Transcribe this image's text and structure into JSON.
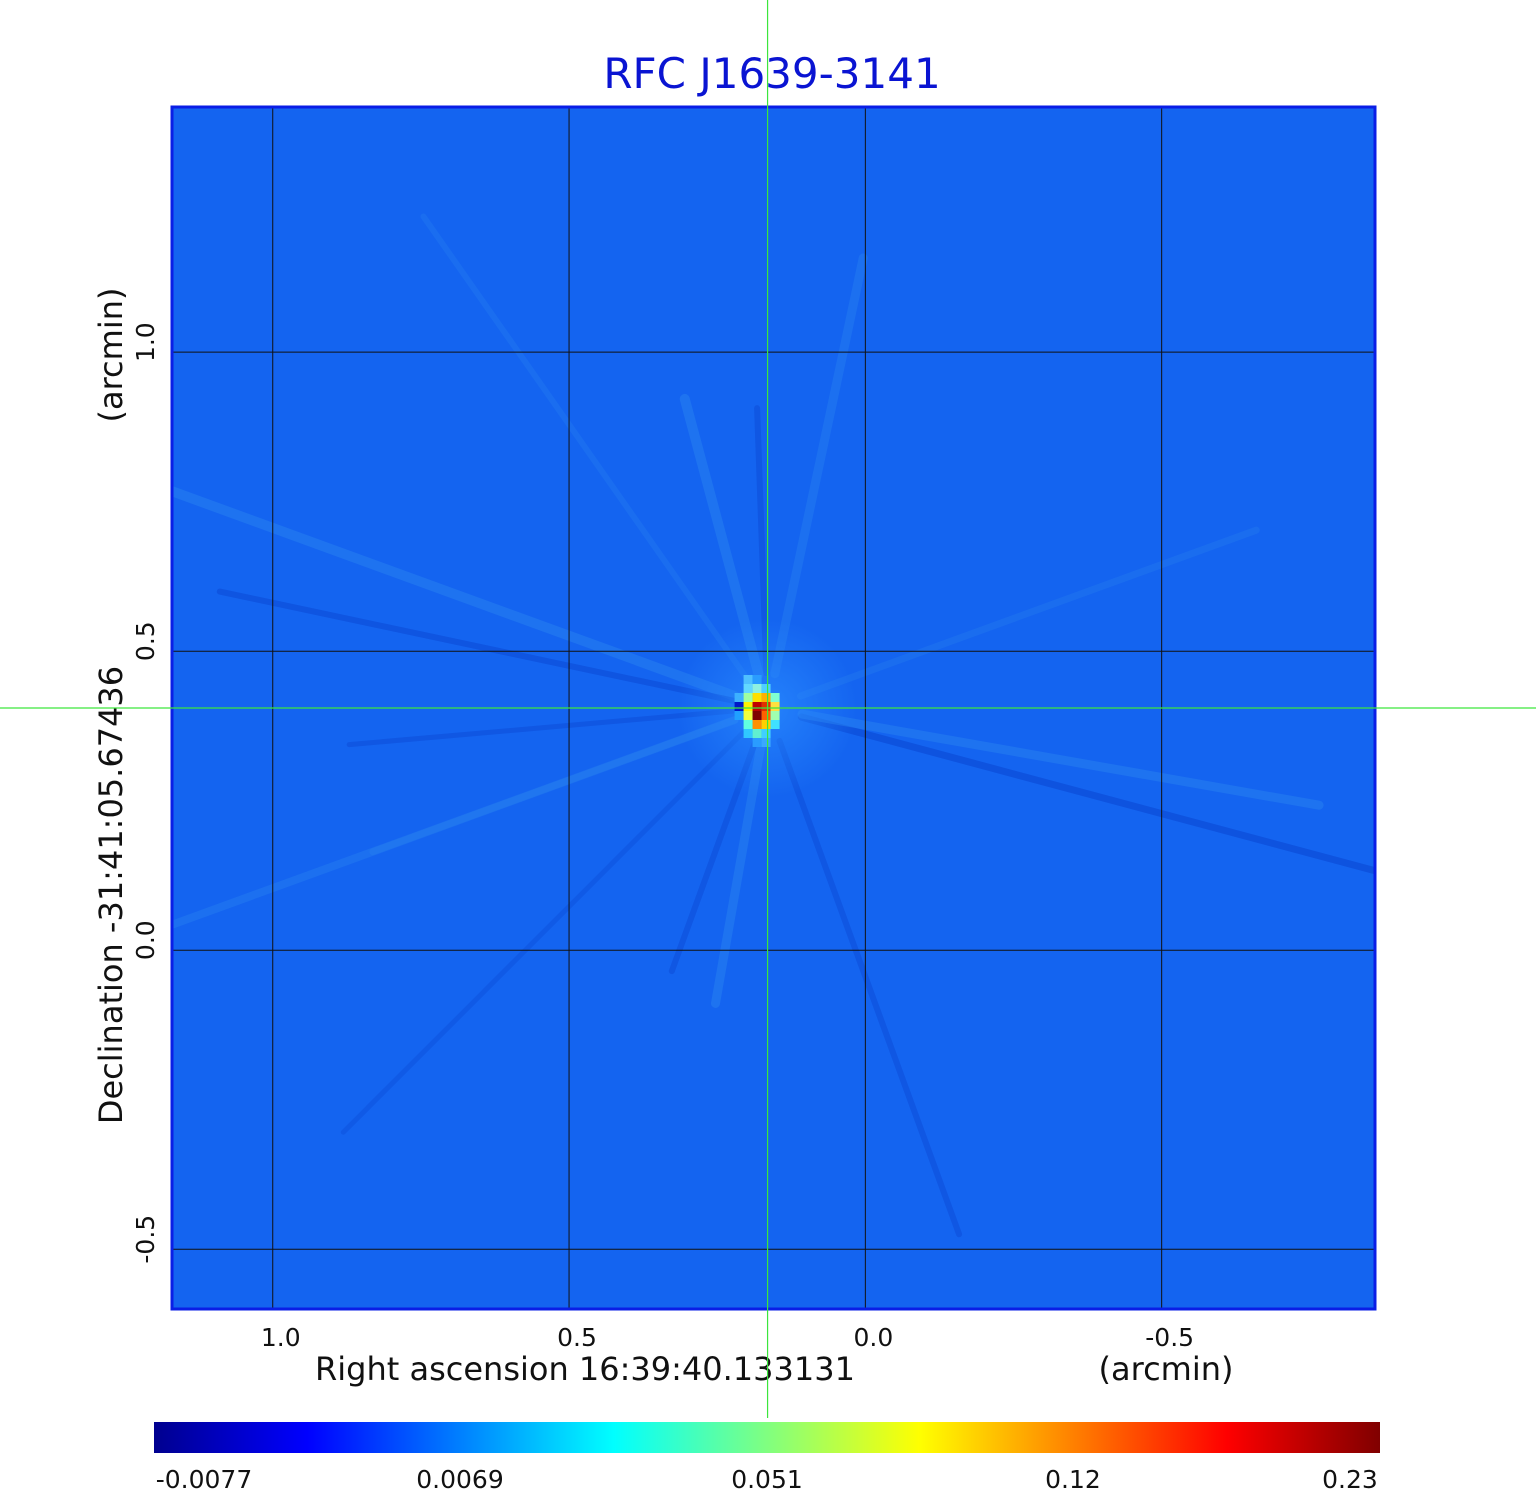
{
  "chart_data": {
    "type": "heatmap",
    "title": "RFC J1639-3141",
    "xlabel": "Right ascension  16:39:40.133131",
    "xunit": "(arcmin)",
    "ylabel": "Declination  -31:41:05.67436",
    "yunit": "(arcmin)",
    "xlim": [
      1.17,
      -0.86
    ],
    "ylim": [
      -0.6,
      1.41
    ],
    "x_ticks": [
      {
        "value": 1.0,
        "label": "1.0"
      },
      {
        "value": 0.5,
        "label": "0.5"
      },
      {
        "value": 0.0,
        "label": "0.0"
      },
      {
        "value": -0.5,
        "label": "-0.5"
      }
    ],
    "y_ticks": [
      {
        "value": 1.0,
        "label": "1.0"
      },
      {
        "value": 0.5,
        "label": "0.5"
      },
      {
        "value": 0.0,
        "label": "0.0"
      },
      {
        "value": -0.5,
        "label": "-0.5"
      }
    ],
    "grid": true,
    "crosshair": {
      "x": 0.165,
      "y": 0.405
    },
    "peak": {
      "x": 0.165,
      "y": 0.405,
      "value": 0.23
    },
    "colorbar": {
      "min": -0.0077,
      "max": 0.23,
      "tick_labels": [
        "-0.0077",
        "0.0069",
        "0.051",
        "0.12",
        "0.23"
      ],
      "colormap": [
        "#00008f",
        "#0000ff",
        "#0080ff",
        "#00ffff",
        "#80ff80",
        "#ffff00",
        "#ff8000",
        "#ff0000",
        "#800000"
      ]
    },
    "colors": {
      "background": "#1464f0",
      "title": "#0a14d2",
      "crosshair": "#3ce63c",
      "grid": "#111111",
      "frame": "#0a1ee6"
    }
  }
}
